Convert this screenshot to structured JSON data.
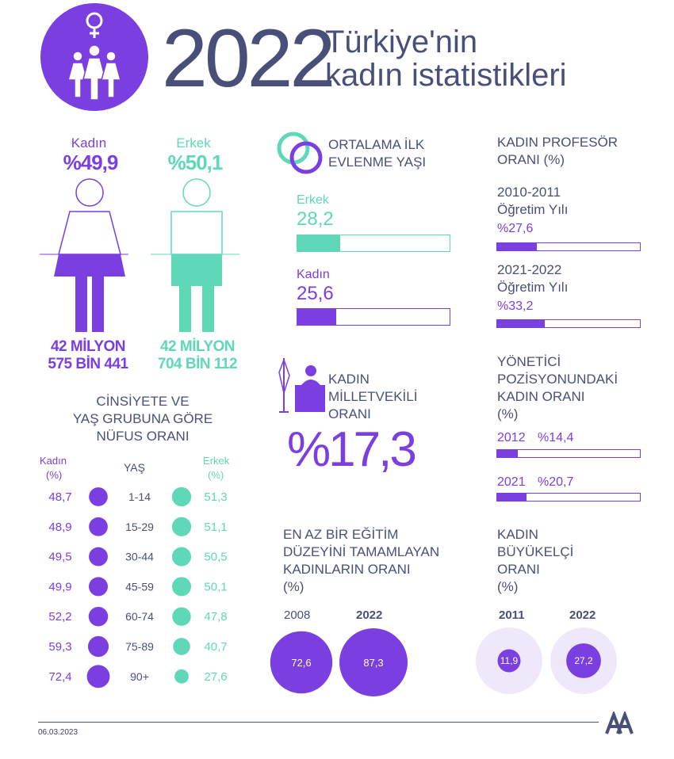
{
  "header": {
    "year": "2022",
    "title_line1": "Türkiye'nin",
    "title_line2": "kadın istatistikleri"
  },
  "population": {
    "female_label": "Kadın",
    "female_pct": "%49,9",
    "male_label": "Erkek",
    "male_pct": "%50,1",
    "female_count_line1": "42 MİLYON",
    "female_count_line2": "575 BİN 441",
    "male_count_line1": "42 MİLYON",
    "male_count_line2": "704 BİN 112"
  },
  "age_section": {
    "title_line1": "CİNSİYETE VE",
    "title_line2": "YAŞ GRUBUNA GÖRE",
    "title_line3": "NÜFUS ORANI",
    "female_header_1": "Kadın",
    "female_header_2": "(%)",
    "age_header": "YAŞ",
    "male_header_1": "Erkek",
    "male_header_2": "(%)"
  },
  "marriage": {
    "title_line1": "ORTALAMA İLK",
    "title_line2": "EVLENME YAŞI",
    "male_label": "Erkek",
    "male_value": "28,2",
    "female_label": "Kadın",
    "female_value": "25,6"
  },
  "mp": {
    "title_line1": "KADIN",
    "title_line2": "MİLLETVEKİLİ",
    "title_line3": "ORANI",
    "value": "%17,3"
  },
  "education": {
    "title_line1": "EN AZ BİR EĞİTİM",
    "title_line2": "DÜZEYİNİ TAMAMLAYAN",
    "title_line3": "KADINLARIN ORANI",
    "title_line4": "(%)",
    "year1": "2008",
    "year2": "2022",
    "value1": "72,6",
    "value2": "87,3"
  },
  "professor": {
    "title_line1": "KADIN PROFESÖR",
    "title_line2": "ORANI (%)",
    "period1_line1": "2010-2011",
    "period1_line2": "Öğretim Yılı",
    "period1_value": "%27,6",
    "period2_line1": "2021-2022",
    "period2_line2": "Öğretim Yılı",
    "period2_value": "%33,2"
  },
  "manager": {
    "title_line1": "YÖNETİCİ",
    "title_line2": "POZİSYONUNDAKİ",
    "title_line3": "KADIN ORANI",
    "title_line4": "(%)",
    "year1": "2012",
    "value1": "%14,4",
    "year2": "2021",
    "value2": "%20,7"
  },
  "ambassador": {
    "title_line1": "KADIN",
    "title_line2": "BÜYÜKELÇİ",
    "title_line3": "ORANI",
    "title_line4": "(%)",
    "year1": "2011",
    "year2": "2022",
    "value1": "11,9",
    "value2": "27,2"
  },
  "footer": {
    "date": "06.03.2023"
  },
  "colors": {
    "purple": "#7b3ee0",
    "mint": "#5fd8b8",
    "navy": "#48507a",
    "light_lavender": "#efe8fb"
  },
  "chart_data": [
    {
      "type": "table",
      "title": "CİNSİYETE VE YAŞ GRUBUNA GÖRE NÜFUS ORANI",
      "categories": [
        "1-14",
        "15-29",
        "30-44",
        "45-59",
        "60-74",
        "75-89",
        "90+"
      ],
      "series": [
        {
          "name": "Kadın (%)",
          "values": [
            48.7,
            48.9,
            49.5,
            49.9,
            52.2,
            59.3,
            72.4
          ],
          "labels": [
            "48,7",
            "48,9",
            "49,5",
            "49,9",
            "52,2",
            "59,3",
            "72,4"
          ]
        },
        {
          "name": "Erkek (%)",
          "values": [
            51.3,
            51.1,
            50.5,
            50.1,
            47.8,
            40.7,
            27.6
          ],
          "labels": [
            "51,3",
            "51,1",
            "50,5",
            "50,1",
            "47,8",
            "40,7",
            "27,6"
          ]
        }
      ]
    },
    {
      "type": "bar",
      "title": "ORTALAMA İLK EVLENME YAŞI",
      "categories": [
        "Erkek",
        "Kadın"
      ],
      "values": [
        28.2,
        25.6
      ],
      "xlim": [
        0,
        100
      ]
    },
    {
      "type": "bar",
      "title": "KADIN PROFESÖR ORANI (%)",
      "categories": [
        "2010-2011 Öğretim Yılı",
        "2021-2022 Öğretim Yılı"
      ],
      "values": [
        27.6,
        33.2
      ],
      "xlim": [
        0,
        100
      ]
    },
    {
      "type": "bar",
      "title": "YÖNETİCİ POZİSYONUNDAKİ KADIN ORANI (%)",
      "categories": [
        "2012",
        "2021"
      ],
      "values": [
        14.4,
        20.7
      ],
      "xlim": [
        0,
        100
      ]
    },
    {
      "type": "scatter",
      "title": "EN AZ BİR EĞİTİM DÜZEYİNİ TAMAMLAYAN KADINLARIN ORANI (%)",
      "categories": [
        "2008",
        "2022"
      ],
      "values": [
        72.6,
        87.3
      ]
    },
    {
      "type": "scatter",
      "title": "KADIN BÜYÜKELÇİ ORANI (%)",
      "categories": [
        "2011",
        "2022"
      ],
      "values": [
        11.9,
        27.2
      ]
    }
  ]
}
